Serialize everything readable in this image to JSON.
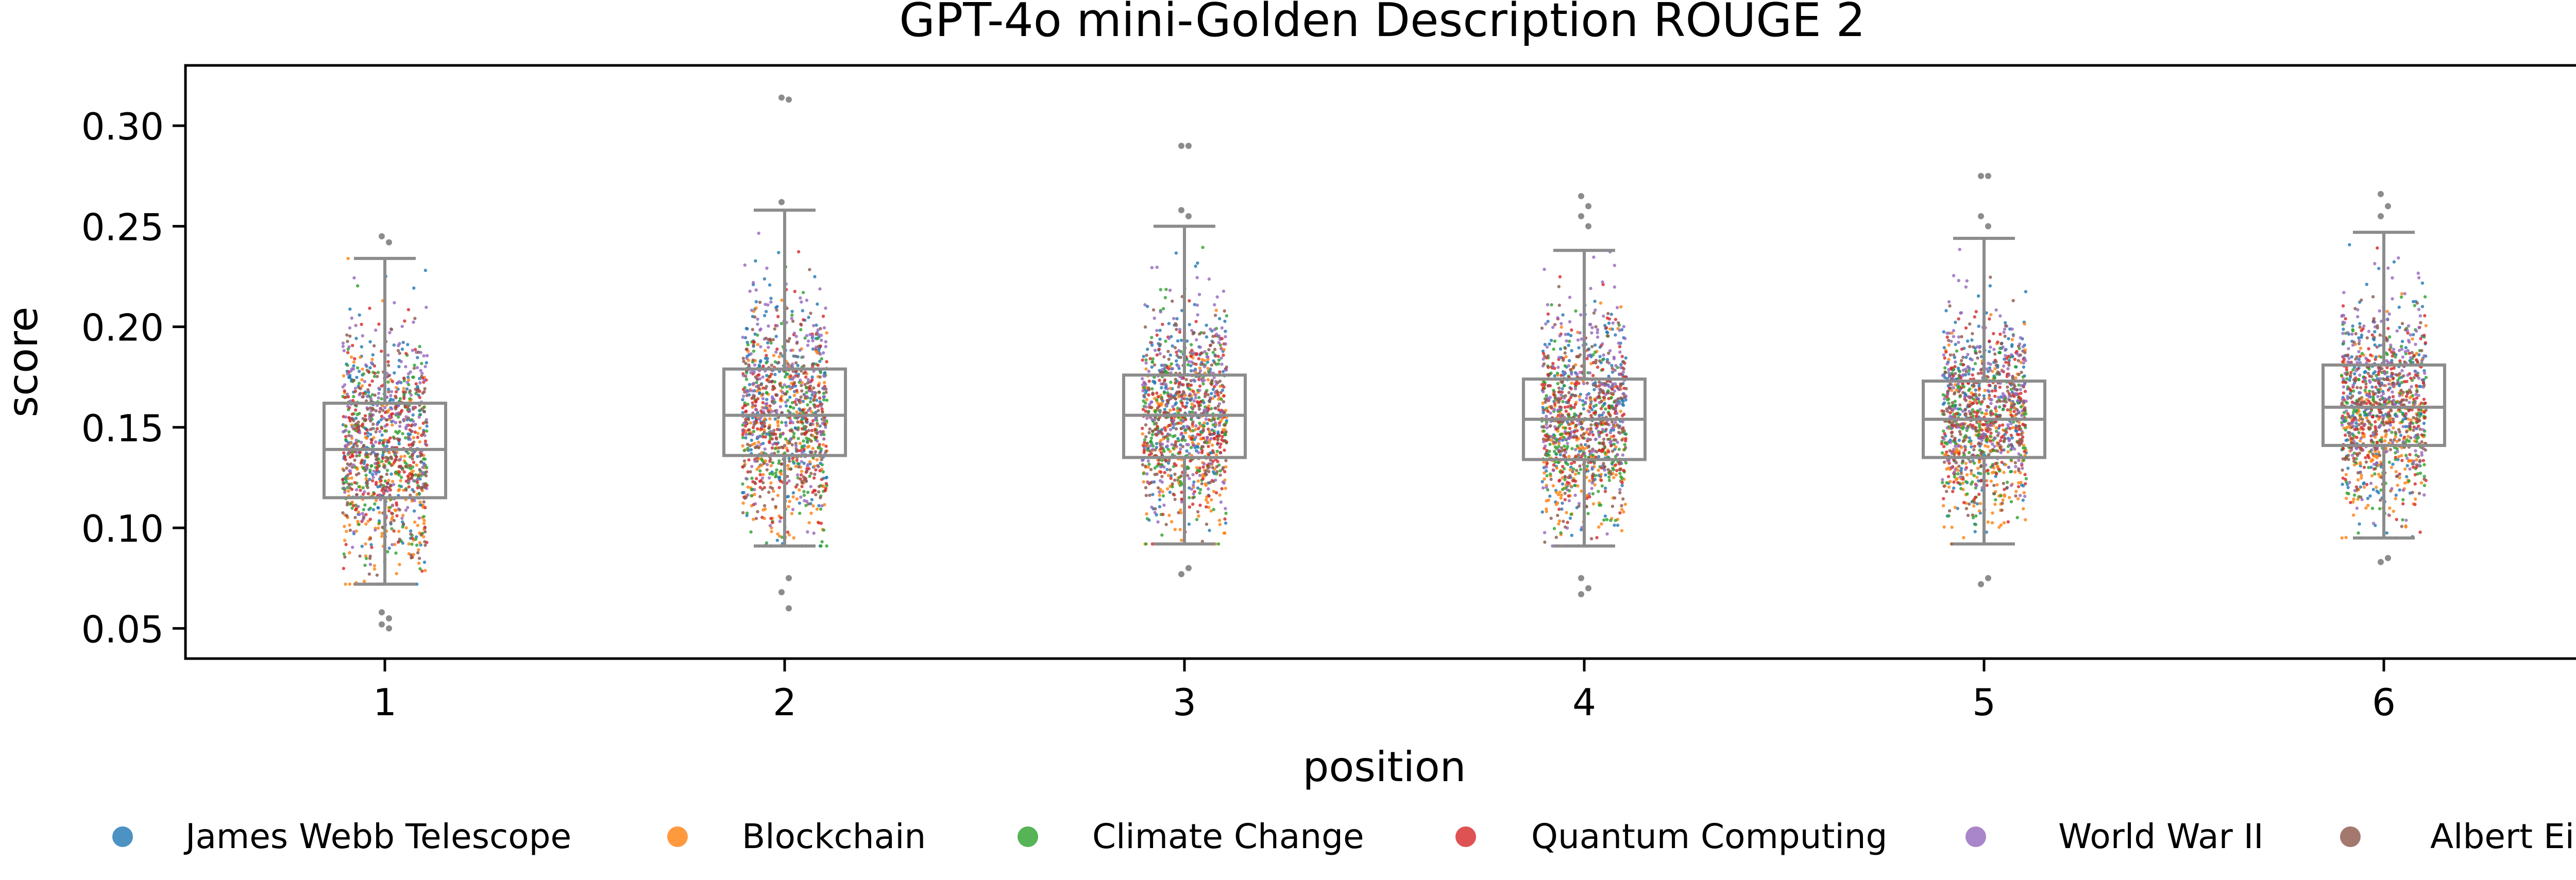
{
  "chart_data": {
    "type": "box+strip",
    "title": "GPT-4o mini-Golden Description ROUGE 2",
    "xlabel": "position",
    "ylabel": "score",
    "ylim": [
      0.035,
      0.33
    ],
    "yticks": [
      "0.05",
      "0.10",
      "0.15",
      "0.20",
      "0.25",
      "0.30"
    ],
    "categories": [
      "1",
      "2",
      "3",
      "4",
      "5",
      "6"
    ],
    "grid": false,
    "legend_position": "bottom",
    "series": [
      {
        "name": "James Webb Telescope",
        "color": "#1f77b4"
      },
      {
        "name": "Blockchain",
        "color": "#ff7f0e"
      },
      {
        "name": "Climate Change",
        "color": "#2ca02c"
      },
      {
        "name": "Quantum Computing",
        "color": "#d62728"
      },
      {
        "name": "World War II",
        "color": "#9467bd"
      },
      {
        "name": "Albert Einstein",
        "color": "#8c564b"
      }
    ],
    "box_color": "#8c8c8c",
    "boxes": [
      {
        "position": "1",
        "whislo": 0.072,
        "q1": 0.115,
        "median": 0.139,
        "q3": 0.162,
        "whishi": 0.234
      },
      {
        "position": "2",
        "whislo": 0.091,
        "q1": 0.136,
        "median": 0.156,
        "q3": 0.179,
        "whishi": 0.258
      },
      {
        "position": "3",
        "whislo": 0.092,
        "q1": 0.135,
        "median": 0.156,
        "q3": 0.176,
        "whishi": 0.25
      },
      {
        "position": "4",
        "whislo": 0.091,
        "q1": 0.134,
        "median": 0.154,
        "q3": 0.174,
        "whishi": 0.238
      },
      {
        "position": "5",
        "whislo": 0.092,
        "q1": 0.135,
        "median": 0.154,
        "q3": 0.173,
        "whishi": 0.244
      },
      {
        "position": "6",
        "whislo": 0.095,
        "q1": 0.141,
        "median": 0.16,
        "q3": 0.181,
        "whishi": 0.247
      }
    ],
    "outliers": [
      {
        "position": "1",
        "values": [
          0.245,
          0.242,
          0.058,
          0.055,
          0.052,
          0.05
        ]
      },
      {
        "position": "2",
        "values": [
          0.314,
          0.313,
          0.262,
          0.06,
          0.068,
          0.075
        ]
      },
      {
        "position": "3",
        "values": [
          0.29,
          0.29,
          0.258,
          0.255,
          0.077,
          0.08
        ]
      },
      {
        "position": "4",
        "values": [
          0.265,
          0.26,
          0.255,
          0.25,
          0.075,
          0.07,
          0.067
        ]
      },
      {
        "position": "5",
        "values": [
          0.275,
          0.275,
          0.255,
          0.25,
          0.072,
          0.075
        ]
      },
      {
        "position": "6",
        "values": [
          0.266,
          0.26,
          0.255,
          0.085,
          0.083
        ]
      }
    ]
  }
}
